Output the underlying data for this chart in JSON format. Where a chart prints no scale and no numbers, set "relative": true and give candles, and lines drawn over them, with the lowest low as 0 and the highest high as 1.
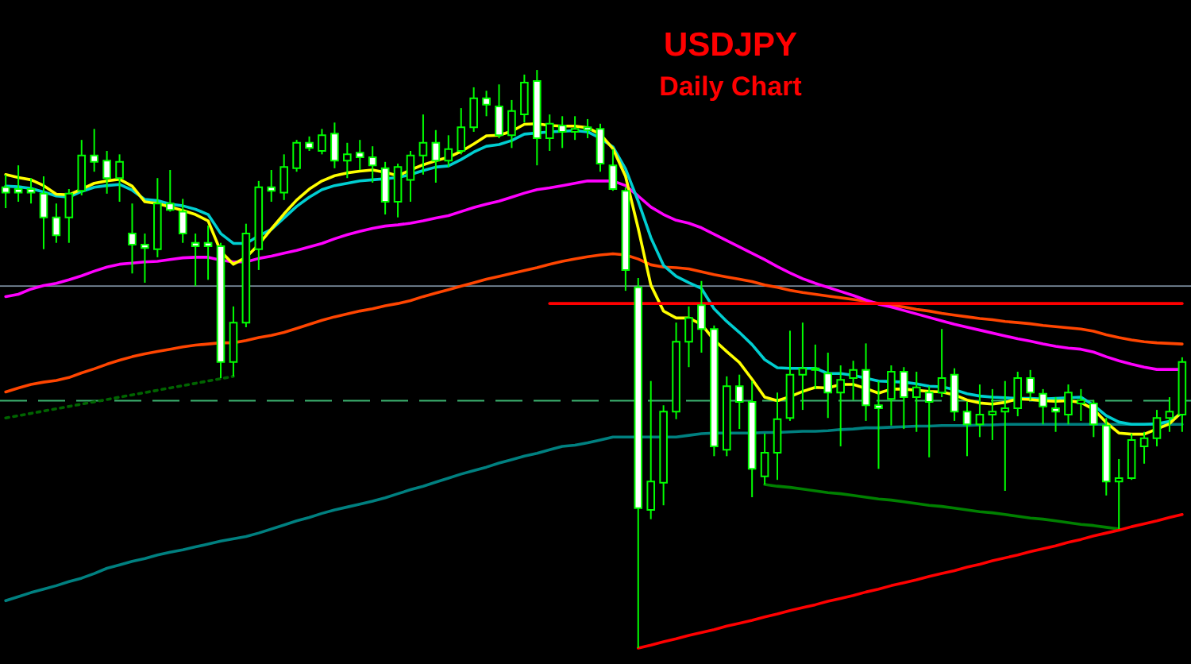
{
  "chart_data": {
    "type": "candlestick",
    "title": "USDJPY",
    "subtitle": "Daily Chart",
    "relative": true,
    "color": "#00ff00",
    "categories": [
      null,
      null,
      null,
      null,
      null,
      null,
      null,
      null,
      null,
      null,
      null,
      null,
      null,
      null,
      null,
      null,
      null,
      null,
      null,
      null,
      null,
      null,
      null,
      null,
      null,
      null,
      null,
      null,
      null,
      null,
      null,
      null,
      null,
      null,
      null,
      null,
      null,
      null,
      null,
      null,
      null,
      null,
      null,
      null,
      null,
      null,
      null,
      null,
      null,
      null,
      null,
      null,
      null,
      null,
      null,
      null,
      null,
      null,
      null,
      null,
      null,
      null,
      null,
      null,
      null,
      null,
      null,
      null,
      null,
      null,
      null,
      null,
      null,
      null,
      null,
      null,
      null,
      null,
      null,
      null,
      null,
      null,
      null,
      null,
      null,
      null,
      null,
      null,
      null,
      null,
      null,
      null,
      null,
      null
    ],
    "ohlc": [
      [
        0.797,
        0.819,
        0.761,
        0.788
      ],
      [
        0.794,
        0.835,
        0.772,
        0.788
      ],
      [
        0.794,
        0.813,
        0.769,
        0.788
      ],
      [
        0.786,
        0.816,
        0.69,
        0.745
      ],
      [
        0.745,
        0.769,
        0.701,
        0.714
      ],
      [
        0.745,
        0.794,
        0.701,
        0.786
      ],
      [
        0.791,
        0.879,
        0.783,
        0.852
      ],
      [
        0.852,
        0.898,
        0.824,
        0.841
      ],
      [
        0.843,
        0.86,
        0.786,
        0.813
      ],
      [
        0.813,
        0.854,
        0.772,
        0.841
      ],
      [
        0.717,
        0.769,
        0.648,
        0.698
      ],
      [
        0.698,
        0.717,
        0.632,
        0.692
      ],
      [
        0.69,
        0.813,
        0.676,
        0.769
      ],
      [
        0.769,
        0.827,
        0.755,
        0.758
      ],
      [
        0.755,
        0.777,
        0.701,
        0.717
      ],
      [
        0.701,
        0.717,
        0.626,
        0.695
      ],
      [
        0.701,
        0.731,
        0.637,
        0.695
      ],
      [
        0.695,
        0.701,
        0.467,
        0.495
      ],
      [
        0.495,
        0.591,
        0.47,
        0.563
      ],
      [
        0.563,
        0.734,
        0.555,
        0.717
      ],
      [
        0.69,
        0.808,
        0.654,
        0.797
      ],
      [
        0.797,
        0.827,
        0.772,
        0.791
      ],
      [
        0.788,
        0.854,
        0.775,
        0.832
      ],
      [
        0.83,
        0.879,
        0.824,
        0.874
      ],
      [
        0.874,
        0.885,
        0.86,
        0.865
      ],
      [
        0.86,
        0.898,
        0.854,
        0.887
      ],
      [
        0.89,
        0.909,
        0.83,
        0.843
      ],
      [
        0.843,
        0.874,
        0.813,
        0.854
      ],
      [
        0.857,
        0.879,
        0.827,
        0.849
      ],
      [
        0.849,
        0.868,
        0.805,
        0.835
      ],
      [
        0.83,
        0.841,
        0.75,
        0.772
      ],
      [
        0.772,
        0.838,
        0.745,
        0.832
      ],
      [
        0.81,
        0.86,
        0.772,
        0.852
      ],
      [
        0.852,
        0.923,
        0.819,
        0.874
      ],
      [
        0.874,
        0.896,
        0.805,
        0.843
      ],
      [
        0.843,
        0.887,
        0.832,
        0.863
      ],
      [
        0.86,
        0.934,
        0.854,
        0.901
      ],
      [
        0.901,
        0.97,
        0.893,
        0.951
      ],
      [
        0.951,
        0.964,
        0.92,
        0.94
      ],
      [
        0.937,
        0.975,
        0.882,
        0.887
      ],
      [
        0.887,
        0.948,
        0.865,
        0.929
      ],
      [
        0.923,
        0.992,
        0.909,
        0.978
      ],
      [
        0.981,
        1.0,
        0.835,
        0.882
      ],
      [
        0.882,
        0.923,
        0.86,
        0.907
      ],
      [
        0.904,
        0.92,
        0.865,
        0.893
      ],
      [
        0.893,
        0.92,
        0.879,
        0.898
      ],
      [
        0.901,
        0.915,
        0.882,
        0.896
      ],
      [
        0.898,
        0.907,
        0.824,
        0.838
      ],
      [
        0.835,
        0.863,
        0.791,
        0.794
      ],
      [
        0.791,
        0.797,
        0.618,
        0.654
      ],
      [
        0.624,
        0.64,
        0.0,
        0.242
      ],
      [
        0.239,
        0.462,
        0.223,
        0.288
      ],
      [
        0.286,
        0.42,
        0.247,
        0.409
      ],
      [
        0.409,
        0.563,
        0.396,
        0.53
      ],
      [
        0.53,
        0.591,
        0.486,
        0.571
      ],
      [
        0.593,
        0.635,
        0.511,
        0.552
      ],
      [
        0.552,
        0.558,
        0.332,
        0.349
      ],
      [
        0.343,
        0.47,
        0.332,
        0.453
      ],
      [
        0.453,
        0.473,
        0.379,
        0.426
      ],
      [
        0.426,
        0.462,
        0.261,
        0.31
      ],
      [
        0.297,
        0.371,
        0.283,
        0.338
      ],
      [
        0.338,
        0.442,
        0.291,
        0.396
      ],
      [
        0.398,
        0.549,
        0.393,
        0.473
      ],
      [
        0.473,
        0.563,
        0.412,
        0.484
      ],
      [
        0.484,
        0.525,
        0.448,
        0.481
      ],
      [
        0.475,
        0.511,
        0.398,
        0.442
      ],
      [
        0.442,
        0.489,
        0.349,
        0.464
      ],
      [
        0.467,
        0.497,
        0.429,
        0.481
      ],
      [
        0.481,
        0.527,
        0.393,
        0.42
      ],
      [
        0.42,
        0.462,
        0.31,
        0.415
      ],
      [
        0.431,
        0.489,
        0.385,
        0.478
      ],
      [
        0.478,
        0.486,
        0.379,
        0.434
      ],
      [
        0.434,
        0.478,
        0.374,
        0.451
      ],
      [
        0.442,
        0.453,
        0.33,
        0.426
      ],
      [
        0.442,
        0.552,
        0.434,
        0.467
      ],
      [
        0.473,
        0.484,
        0.393,
        0.409
      ],
      [
        0.409,
        0.426,
        0.332,
        0.387
      ],
      [
        0.387,
        0.456,
        0.365,
        0.404
      ],
      [
        0.404,
        0.448,
        0.36,
        0.409
      ],
      [
        0.409,
        0.462,
        0.272,
        0.415
      ],
      [
        0.415,
        0.478,
        0.401,
        0.467
      ],
      [
        0.467,
        0.481,
        0.429,
        0.442
      ],
      [
        0.44,
        0.448,
        0.387,
        0.418
      ],
      [
        0.415,
        0.434,
        0.374,
        0.409
      ],
      [
        0.404,
        0.456,
        0.387,
        0.442
      ],
      [
        0.423,
        0.448,
        0.393,
        0.429
      ],
      [
        0.423,
        0.429,
        0.365,
        0.387
      ],
      [
        0.385,
        0.398,
        0.264,
        0.288
      ],
      [
        0.288,
        0.327,
        0.206,
        0.294
      ],
      [
        0.294,
        0.371,
        0.291,
        0.36
      ],
      [
        0.349,
        0.374,
        0.319,
        0.363
      ],
      [
        0.363,
        0.412,
        0.349,
        0.398
      ],
      [
        0.398,
        0.434,
        0.374,
        0.409
      ],
      [
        0.404,
        0.503,
        0.374,
        0.495
      ]
    ],
    "series": [
      {
        "type": "line",
        "color": "#008080",
        "values": [
          0.082,
          0.089,
          0.096,
          0.102,
          0.108,
          0.115,
          0.121,
          0.129,
          0.138,
          0.144,
          0.15,
          0.155,
          0.161,
          0.166,
          0.17,
          0.175,
          0.18,
          0.185,
          0.189,
          0.193,
          0.199,
          0.206,
          0.213,
          0.22,
          0.226,
          0.233,
          0.239,
          0.244,
          0.249,
          0.254,
          0.26,
          0.267,
          0.274,
          0.28,
          0.287,
          0.294,
          0.301,
          0.307,
          0.313,
          0.32,
          0.326,
          0.332,
          0.337,
          0.343,
          0.349,
          0.351,
          0.355,
          0.36,
          0.365,
          0.365,
          0.365,
          0.365,
          0.365,
          0.365,
          0.368,
          0.371,
          0.372,
          0.372,
          0.372,
          0.372,
          0.373,
          0.373,
          0.374,
          0.375,
          0.375,
          0.376,
          0.378,
          0.379,
          0.381,
          0.381,
          0.382,
          0.383,
          0.384,
          0.384,
          0.385,
          0.385,
          0.385,
          0.386,
          0.386,
          0.387,
          0.387,
          0.387,
          0.387,
          0.387,
          0.387,
          0.387,
          0.387,
          0.387,
          0.387,
          0.387,
          0.387,
          0.387,
          0.387,
          0.387
        ]
      },
      {
        "type": "line",
        "color": "#ff4500",
        "values": [
          0.443,
          0.45,
          0.456,
          0.46,
          0.463,
          0.468,
          0.476,
          0.483,
          0.491,
          0.498,
          0.504,
          0.509,
          0.513,
          0.517,
          0.521,
          0.524,
          0.526,
          0.528,
          0.528,
          0.532,
          0.537,
          0.541,
          0.546,
          0.553,
          0.56,
          0.567,
          0.573,
          0.578,
          0.583,
          0.587,
          0.592,
          0.596,
          0.601,
          0.608,
          0.614,
          0.62,
          0.626,
          0.632,
          0.638,
          0.643,
          0.648,
          0.653,
          0.658,
          0.664,
          0.669,
          0.673,
          0.677,
          0.68,
          0.682,
          0.68,
          0.673,
          0.663,
          0.659,
          0.658,
          0.656,
          0.651,
          0.646,
          0.642,
          0.638,
          0.634,
          0.628,
          0.624,
          0.619,
          0.615,
          0.612,
          0.609,
          0.606,
          0.603,
          0.6,
          0.596,
          0.593,
          0.59,
          0.586,
          0.583,
          0.579,
          0.576,
          0.573,
          0.57,
          0.568,
          0.565,
          0.563,
          0.561,
          0.558,
          0.556,
          0.554,
          0.552,
          0.548,
          0.542,
          0.537,
          0.533,
          0.53,
          0.528,
          0.527,
          0.526
        ]
      },
      {
        "type": "line",
        "color": "#ff00ff",
        "values": [
          0.608,
          0.612,
          0.621,
          0.627,
          0.631,
          0.637,
          0.644,
          0.652,
          0.659,
          0.664,
          0.666,
          0.668,
          0.669,
          0.672,
          0.675,
          0.676,
          0.676,
          0.671,
          0.668,
          0.668,
          0.674,
          0.678,
          0.683,
          0.688,
          0.694,
          0.7,
          0.708,
          0.715,
          0.721,
          0.726,
          0.73,
          0.732,
          0.735,
          0.739,
          0.744,
          0.748,
          0.755,
          0.762,
          0.768,
          0.773,
          0.78,
          0.787,
          0.793,
          0.796,
          0.8,
          0.804,
          0.808,
          0.808,
          0.808,
          0.8,
          0.782,
          0.763,
          0.75,
          0.74,
          0.735,
          0.727,
          0.716,
          0.705,
          0.694,
          0.683,
          0.672,
          0.66,
          0.649,
          0.639,
          0.631,
          0.624,
          0.617,
          0.61,
          0.602,
          0.595,
          0.59,
          0.584,
          0.578,
          0.572,
          0.566,
          0.56,
          0.555,
          0.55,
          0.545,
          0.54,
          0.535,
          0.531,
          0.526,
          0.522,
          0.519,
          0.517,
          0.512,
          0.504,
          0.497,
          0.491,
          0.486,
          0.482,
          0.482,
          0.482
        ]
      },
      {
        "type": "line",
        "color": "#00ced1",
        "values": [
          0.799,
          0.798,
          0.795,
          0.789,
          0.782,
          0.78,
          0.79,
          0.797,
          0.8,
          0.802,
          0.792,
          0.776,
          0.774,
          0.768,
          0.765,
          0.759,
          0.75,
          0.717,
          0.7,
          0.7,
          0.713,
          0.724,
          0.744,
          0.764,
          0.78,
          0.793,
          0.8,
          0.804,
          0.808,
          0.81,
          0.812,
          0.814,
          0.819,
          0.826,
          0.832,
          0.834,
          0.845,
          0.858,
          0.868,
          0.871,
          0.878,
          0.889,
          0.891,
          0.893,
          0.894,
          0.895,
          0.893,
          0.882,
          0.867,
          0.829,
          0.773,
          0.71,
          0.662,
          0.643,
          0.632,
          0.622,
          0.587,
          0.565,
          0.546,
          0.525,
          0.499,
          0.485,
          0.484,
          0.484,
          0.484,
          0.475,
          0.475,
          0.472,
          0.467,
          0.462,
          0.461,
          0.46,
          0.457,
          0.453,
          0.452,
          0.447,
          0.44,
          0.436,
          0.434,
          0.433,
          0.432,
          0.432,
          0.431,
          0.432,
          0.433,
          0.434,
          0.42,
          0.402,
          0.391,
          0.387,
          0.387,
          0.388,
          0.392,
          0.407
        ]
      },
      {
        "type": "line",
        "color": "#ffff00",
        "values": [
          0.819,
          0.814,
          0.81,
          0.8,
          0.785,
          0.784,
          0.794,
          0.804,
          0.808,
          0.811,
          0.799,
          0.772,
          0.769,
          0.763,
          0.757,
          0.75,
          0.739,
          0.686,
          0.664,
          0.676,
          0.698,
          0.725,
          0.751,
          0.775,
          0.794,
          0.808,
          0.817,
          0.822,
          0.825,
          0.827,
          0.823,
          0.817,
          0.827,
          0.836,
          0.843,
          0.849,
          0.859,
          0.872,
          0.886,
          0.887,
          0.894,
          0.906,
          0.907,
          0.904,
          0.903,
          0.903,
          0.9,
          0.889,
          0.864,
          0.816,
          0.726,
          0.628,
          0.583,
          0.571,
          0.571,
          0.56,
          0.533,
          0.513,
          0.494,
          0.465,
          0.434,
          0.428,
          0.435,
          0.444,
          0.451,
          0.45,
          0.456,
          0.456,
          0.449,
          0.441,
          0.448,
          0.448,
          0.446,
          0.444,
          0.443,
          0.438,
          0.429,
          0.424,
          0.422,
          0.425,
          0.431,
          0.43,
          0.428,
          0.427,
          0.428,
          0.425,
          0.413,
          0.39,
          0.372,
          0.37,
          0.37,
          0.379,
          0.388,
          0.409
        ]
      },
      {
        "type": "line",
        "color": "#006400",
        "line_style": "dotted",
        "values": [
          0.398,
          0.402,
          0.406,
          0.41,
          0.414,
          0.418,
          0.422,
          0.426,
          0.43,
          0.434,
          0.438,
          0.442,
          0.446,
          0.45,
          0.454,
          0.458,
          0.462,
          0.466,
          0.47,
          null,
          null,
          null,
          null,
          null,
          null,
          null,
          null,
          null,
          null,
          null,
          null,
          null,
          null,
          null,
          null,
          null,
          null,
          null,
          null,
          null,
          null,
          null,
          null,
          null,
          null,
          null,
          null,
          null,
          null,
          null,
          null,
          null,
          null,
          null,
          null,
          null,
          null,
          null,
          null,
          null,
          null,
          null,
          null,
          null,
          null,
          null,
          null,
          null,
          null,
          null,
          null,
          null,
          null,
          null,
          null,
          null,
          null,
          null,
          null,
          null,
          null,
          null,
          null,
          null,
          null,
          null,
          null,
          null,
          null,
          null,
          null,
          null,
          null,
          null
        ]
      },
      {
        "type": "line",
        "color": "#008000",
        "values": [
          null,
          null,
          null,
          null,
          null,
          null,
          null,
          null,
          null,
          null,
          null,
          null,
          null,
          null,
          null,
          null,
          null,
          null,
          null,
          null,
          null,
          null,
          null,
          null,
          null,
          null,
          null,
          null,
          null,
          null,
          null,
          null,
          null,
          null,
          null,
          null,
          null,
          null,
          null,
          null,
          null,
          null,
          null,
          null,
          null,
          null,
          null,
          null,
          null,
          null,
          null,
          null,
          null,
          null,
          null,
          null,
          null,
          null,
          null,
          null,
          0.283,
          0.28,
          0.278,
          0.275,
          0.272,
          0.269,
          0.267,
          0.264,
          0.261,
          0.258,
          0.256,
          0.253,
          0.25,
          0.247,
          0.245,
          0.242,
          0.239,
          0.236,
          0.234,
          0.231,
          0.228,
          0.225,
          0.223,
          0.22,
          0.217,
          0.214,
          0.212,
          0.209,
          0.206,
          null,
          null,
          null,
          null,
          null
        ]
      },
      {
        "type": "line",
        "color": "#ff0000",
        "values": [
          null,
          null,
          null,
          null,
          null,
          null,
          null,
          null,
          null,
          null,
          null,
          null,
          null,
          null,
          null,
          null,
          null,
          null,
          null,
          null,
          null,
          null,
          null,
          null,
          null,
          null,
          null,
          null,
          null,
          null,
          null,
          null,
          null,
          null,
          null,
          null,
          null,
          null,
          null,
          null,
          null,
          null,
          null,
          0.596,
          0.596,
          0.596,
          0.596,
          0.596,
          0.596,
          0.596,
          0.596,
          0.596,
          0.596,
          0.596,
          0.596,
          0.596,
          0.596,
          0.596,
          0.596,
          0.596,
          0.596,
          0.596,
          0.596,
          0.596,
          0.596,
          0.596,
          0.596,
          0.596,
          0.596,
          0.596,
          0.596,
          0.596,
          0.596,
          0.596,
          0.596,
          0.596,
          0.596,
          0.596,
          0.596,
          0.596,
          0.596,
          0.596,
          0.596,
          0.596,
          0.596,
          0.596,
          0.596,
          0.596,
          0.596,
          0.596,
          0.596,
          0.596,
          0.596,
          0.596
        ]
      },
      {
        "type": "line",
        "color": "#ff0000",
        "values": [
          null,
          null,
          null,
          null,
          null,
          null,
          null,
          null,
          null,
          null,
          null,
          null,
          null,
          null,
          null,
          null,
          null,
          null,
          null,
          null,
          null,
          null,
          null,
          null,
          null,
          null,
          null,
          null,
          null,
          null,
          null,
          null,
          null,
          null,
          null,
          null,
          null,
          null,
          null,
          null,
          null,
          null,
          null,
          null,
          null,
          null,
          null,
          null,
          null,
          null,
          0.0,
          0.005,
          0.011,
          0.016,
          0.022,
          0.027,
          0.032,
          0.038,
          0.043,
          0.048,
          0.054,
          0.059,
          0.065,
          0.07,
          0.075,
          0.081,
          0.086,
          0.091,
          0.097,
          0.102,
          0.108,
          0.113,
          0.118,
          0.124,
          0.129,
          0.134,
          0.14,
          0.145,
          0.151,
          0.156,
          0.161,
          0.167,
          0.172,
          0.177,
          0.183,
          0.188,
          0.194,
          0.199,
          0.204,
          0.21,
          0.215,
          0.22,
          0.226,
          0.231
        ]
      }
    ],
    "ref_lines": [
      {
        "axis": "y",
        "value": 0.626,
        "color": "#778899"
      },
      {
        "axis": "y",
        "value": 0.428,
        "color": "#3cb371",
        "line_style": "dashed"
      }
    ]
  }
}
